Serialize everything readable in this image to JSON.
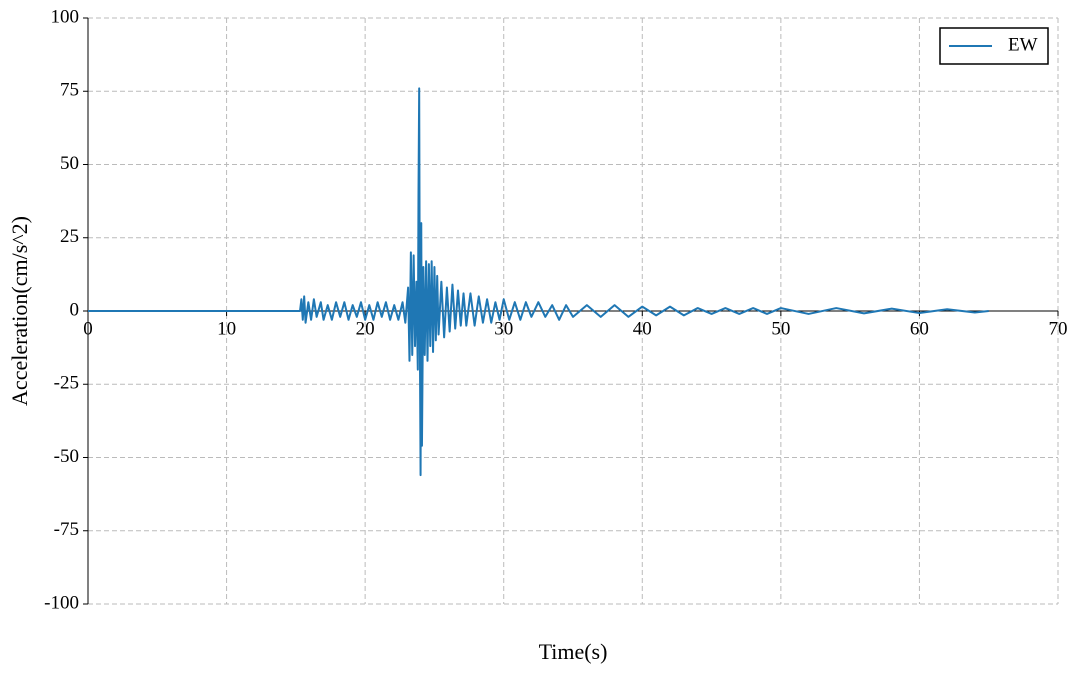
{
  "chart_data": {
    "type": "line",
    "xlabel": "Time(s)",
    "ylabel": "Acceleration(cm/s^2)",
    "xlim": [
      0,
      70
    ],
    "ylim": [
      -100,
      100
    ],
    "xticks": [
      0,
      10,
      20,
      30,
      40,
      50,
      60,
      70
    ],
    "yticks": [
      -100,
      -75,
      -50,
      -25,
      0,
      25,
      50,
      75,
      100
    ],
    "grid": true,
    "legend": "upper right",
    "series": [
      {
        "name": "EW",
        "color": "#1f77b4",
        "x": [
          0,
          15.3,
          15.4,
          15.5,
          15.6,
          15.7,
          15.9,
          16.1,
          16.3,
          16.5,
          16.8,
          17.0,
          17.3,
          17.6,
          17.9,
          18.2,
          18.5,
          18.8,
          19.1,
          19.4,
          19.7,
          20.0,
          20.3,
          20.6,
          20.9,
          21.2,
          21.5,
          21.8,
          22.1,
          22.4,
          22.7,
          22.9,
          23.1,
          23.2,
          23.3,
          23.4,
          23.5,
          23.6,
          23.7,
          23.8,
          23.85,
          23.9,
          23.95,
          24.0,
          24.05,
          24.1,
          24.2,
          24.3,
          24.4,
          24.5,
          24.6,
          24.7,
          24.8,
          24.9,
          25.0,
          25.1,
          25.2,
          25.3,
          25.5,
          25.7,
          25.9,
          26.1,
          26.3,
          26.5,
          26.7,
          26.9,
          27.1,
          27.3,
          27.6,
          27.9,
          28.2,
          28.5,
          28.8,
          29.1,
          29.4,
          29.7,
          30.0,
          30.4,
          30.8,
          31.2,
          31.6,
          32.0,
          32.5,
          33.0,
          33.5,
          34.0,
          34.5,
          35.0,
          36,
          37,
          38,
          39,
          40,
          41,
          42,
          43,
          44,
          45,
          46,
          47,
          48,
          49,
          50,
          52,
          54,
          56,
          58,
          60,
          62,
          64,
          65
        ],
        "values": [
          0,
          0,
          4,
          -3,
          5,
          -4,
          3,
          -3,
          4,
          -2,
          3,
          -3,
          2,
          -3,
          3,
          -2,
          3,
          -3,
          2,
          -2,
          3,
          -3,
          2,
          -3,
          3,
          -2,
          3,
          -3,
          2,
          -3,
          3,
          -4,
          8,
          -17,
          20,
          -15,
          19,
          -12,
          10,
          -20,
          40,
          76,
          -10,
          -56,
          30,
          -46,
          15,
          -15,
          17,
          -17,
          16,
          -12,
          17,
          -14,
          15,
          -10,
          12,
          -8,
          10,
          -9,
          8,
          -7,
          9,
          -6,
          7,
          -5,
          6,
          -5,
          6,
          -5,
          5,
          -4,
          4,
          -4,
          3,
          -3,
          4,
          -3,
          3,
          -3,
          3,
          -2,
          3,
          -2,
          2,
          -3,
          2,
          -2,
          2,
          -2,
          2,
          -2,
          1.5,
          -1.5,
          1.5,
          -1.5,
          1,
          -1,
          1,
          -1,
          1,
          -1,
          1,
          -1,
          1,
          -0.8,
          0.8,
          -0.7,
          0.6,
          -0.5,
          0
        ]
      }
    ]
  }
}
